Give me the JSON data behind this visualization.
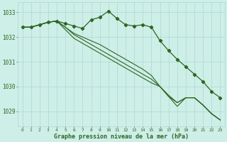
{
  "title": "Graphe pression niveau de la mer (hPa)",
  "background_color": "#ceeee8",
  "grid_color": "#b0d8d0",
  "line_color": "#2d6620",
  "xlim": [
    -0.5,
    23.5
  ],
  "ylim": [
    1028.4,
    1033.4
  ],
  "yticks": [
    1029,
    1030,
    1031,
    1032,
    1033
  ],
  "xticks": [
    0,
    1,
    2,
    3,
    4,
    5,
    6,
    7,
    8,
    9,
    10,
    11,
    12,
    13,
    14,
    15,
    16,
    17,
    18,
    19,
    20,
    21,
    22,
    23
  ],
  "series": [
    [
      1032.4,
      1032.4,
      1032.5,
      1032.6,
      1032.65,
      1032.55,
      1032.45,
      1032.35,
      1032.7,
      1032.8,
      1033.05,
      1032.75,
      1032.5,
      1032.45,
      1032.5,
      1032.4,
      1031.85,
      1031.45,
      1031.1,
      1030.8,
      1030.5,
      1030.2,
      1029.8,
      1029.55
    ],
    [
      1032.4,
      1032.4,
      1032.5,
      1032.6,
      1032.65,
      1032.4,
      1032.15,
      1032.0,
      1031.85,
      1031.7,
      1031.5,
      1031.3,
      1031.1,
      1030.9,
      1030.7,
      1030.45,
      1030.0,
      1029.65,
      1029.35,
      1029.55,
      1029.55,
      1029.25,
      1028.9,
      1028.65
    ],
    [
      1032.4,
      1032.4,
      1032.5,
      1032.6,
      1032.65,
      1032.4,
      1032.1,
      1031.9,
      1031.7,
      1031.5,
      1031.3,
      1031.1,
      1030.9,
      1030.7,
      1030.5,
      1030.3,
      1030.0,
      1029.6,
      1029.35,
      1029.55,
      1029.55,
      1029.25,
      1028.9,
      1028.65
    ],
    [
      1032.4,
      1032.4,
      1032.5,
      1032.6,
      1032.65,
      1032.3,
      1031.95,
      1031.75,
      1031.55,
      1031.35,
      1031.15,
      1030.95,
      1030.75,
      1030.55,
      1030.35,
      1030.15,
      1030.0,
      1029.6,
      1029.2,
      1029.55,
      1029.55,
      1029.25,
      1028.9,
      1028.65
    ]
  ]
}
